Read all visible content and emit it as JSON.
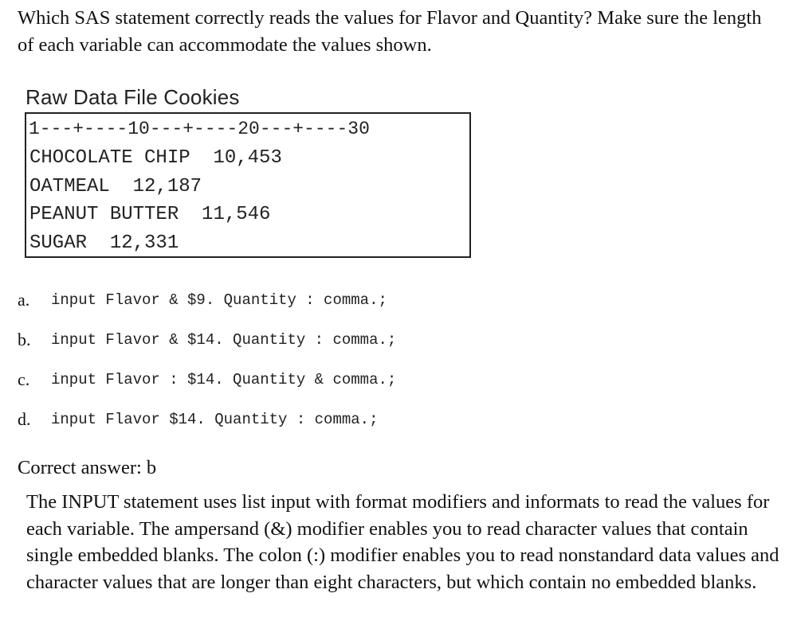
{
  "question": "Which SAS statement correctly reads the values for Flavor and Quantity? Make sure the length of each variable can accommodate the values shown.",
  "raw_data": {
    "title": "Raw Data File Cookies",
    "ruler": "1---+----10---+----20---+----30",
    "rows": [
      "CHOCOLATE CHIP  10,453",
      "OATMEAL  12,187",
      "PEANUT BUTTER  11,546",
      "SUGAR  12,331"
    ]
  },
  "options": [
    {
      "letter": "a.",
      "code": "input Flavor & $9. Quantity : comma.;"
    },
    {
      "letter": "b.",
      "code": "input Flavor & $14. Quantity : comma.;"
    },
    {
      "letter": "c.",
      "code": "input Flavor : $14. Quantity & comma.;"
    },
    {
      "letter": "d.",
      "code": "input Flavor $14. Quantity : comma.;"
    }
  ],
  "correct_answer": "Correct answer: b",
  "explanation": "The INPUT statement uses list input with format modifiers and informats to read the values for each variable. The ampersand (&) modifier enables you to read character values that contain single embedded blanks. The colon (:) modifier enables you to read nonstandard data values and character values that are longer than eight characters, but which contain no embedded blanks."
}
